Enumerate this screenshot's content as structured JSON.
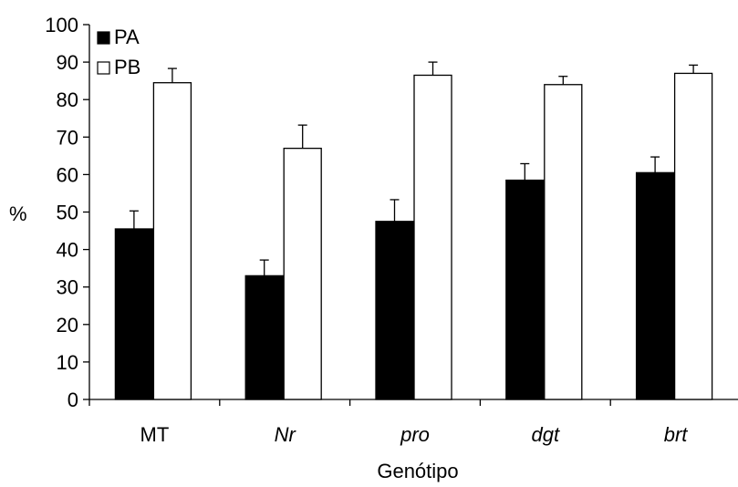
{
  "chart_data": {
    "type": "bar",
    "categories": [
      "MT",
      "Nr",
      "pro",
      "dgt",
      "brt"
    ],
    "italic_categories": [
      false,
      true,
      true,
      true,
      true
    ],
    "series": [
      {
        "name": "PA",
        "values": [
          45.5,
          33,
          47.5,
          58.5,
          60.5
        ],
        "errors": [
          4.8,
          4.2,
          5.8,
          4.4,
          4.2
        ],
        "color": "#000000"
      },
      {
        "name": "PB",
        "values": [
          84.5,
          67,
          86.5,
          84,
          87
        ],
        "errors": [
          3.8,
          6.2,
          3.5,
          2.2,
          2.2
        ],
        "color": "#ffffff"
      }
    ],
    "xlabel": "Genótipo",
    "ylabel": "%",
    "ylim": [
      0,
      100
    ],
    "yticks": [
      0,
      10,
      20,
      30,
      40,
      50,
      60,
      70,
      80,
      90,
      100
    ],
    "grid": false,
    "legend_position": "top-left"
  }
}
